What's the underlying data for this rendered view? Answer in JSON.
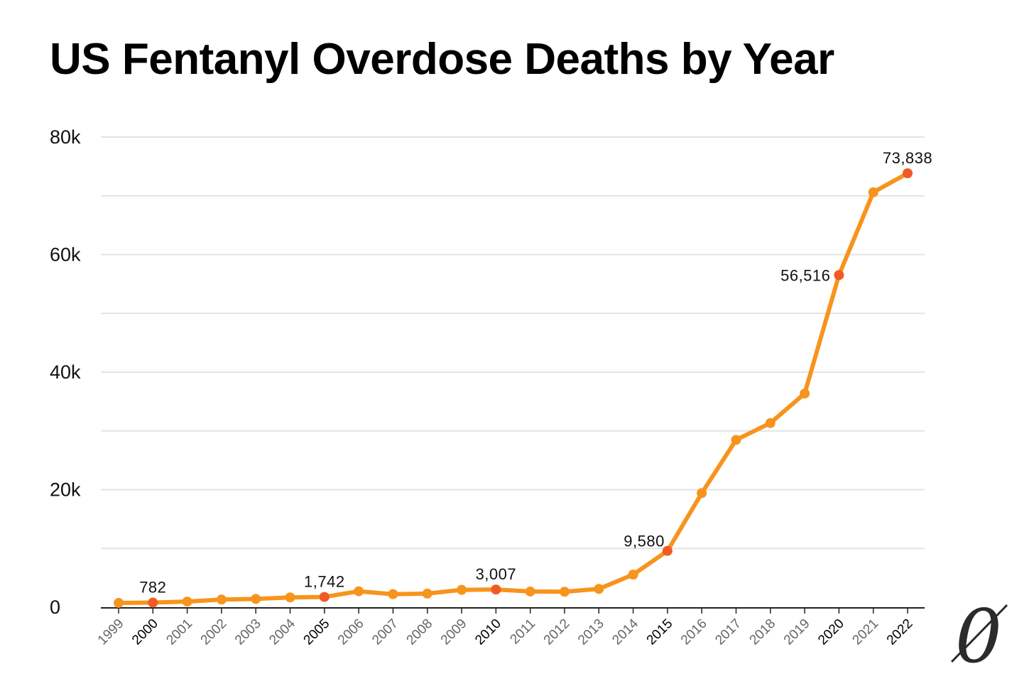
{
  "chart_data": {
    "type": "line",
    "title": "US Fentanyl Overdose Deaths by Year",
    "xlabel": "",
    "ylabel": "",
    "ylim": [
      0,
      80000
    ],
    "yticks": [
      {
        "value": 0,
        "label": "0"
      },
      {
        "value": 20000,
        "label": "20k"
      },
      {
        "value": 40000,
        "label": "40k"
      },
      {
        "value": 60000,
        "label": "60k"
      },
      {
        "value": 80000,
        "label": "80k"
      }
    ],
    "minor_gridlines": [
      10000,
      30000,
      50000,
      70000
    ],
    "grid": true,
    "categories": [
      "1999",
      "2000",
      "2001",
      "2002",
      "2003",
      "2004",
      "2005",
      "2006",
      "2007",
      "2008",
      "2009",
      "2010",
      "2011",
      "2012",
      "2013",
      "2014",
      "2015",
      "2016",
      "2017",
      "2018",
      "2019",
      "2020",
      "2021",
      "2022"
    ],
    "series": [
      {
        "name": "Fentanyl overdose deaths",
        "values": [
          730,
          782,
          957,
          1295,
          1400,
          1664,
          1742,
          2707,
          2213,
          2306,
          2946,
          3007,
          2666,
          2628,
          3105,
          5544,
          9580,
          19413,
          28466,
          31335,
          36359,
          56516,
          70601,
          73838
        ]
      }
    ],
    "highlighted_years": [
      "2000",
      "2005",
      "2010",
      "2015",
      "2020",
      "2022"
    ],
    "annotations": [
      {
        "year": "2000",
        "label": "782",
        "position": "above"
      },
      {
        "year": "2005",
        "label": "1,742",
        "position": "above"
      },
      {
        "year": "2010",
        "label": "3,007",
        "position": "above"
      },
      {
        "year": "2015",
        "label": "9,580",
        "position": "above-left"
      },
      {
        "year": "2020",
        "label": "56,516",
        "position": "left"
      },
      {
        "year": "2022",
        "label": "73,838",
        "position": "above"
      }
    ],
    "colors": {
      "line": "#F7941D",
      "marker": "#F7941D",
      "highlight_marker": "#F15A24",
      "grid": "#E3E3E3",
      "axis": "#222222",
      "tick_label_dim": "#666666",
      "tick_label_strong": "#000000"
    }
  },
  "logo": {
    "glyph": "0",
    "name": "publisher-logo"
  }
}
